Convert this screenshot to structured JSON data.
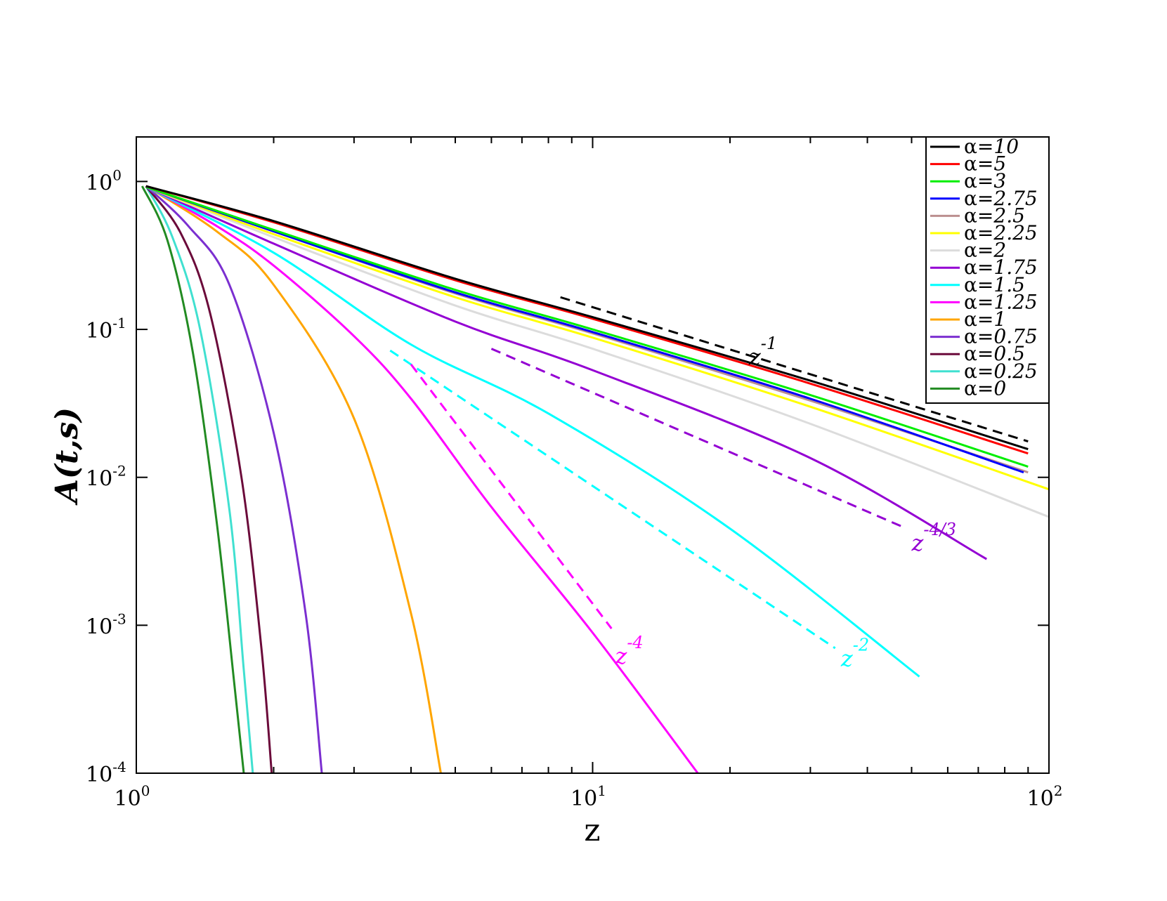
{
  "chart_data": {
    "type": "line",
    "xlabel": "z",
    "ylabel": "A(t,s)",
    "xscale": "log",
    "yscale": "log",
    "xlim": [
      1,
      100
    ],
    "ylim": [
      0.0001,
      2
    ],
    "x_ticks": [
      {
        "value": 1,
        "base": "10",
        "exp": "0"
      },
      {
        "value": 10,
        "base": "10",
        "exp": "1"
      },
      {
        "value": 100,
        "base": "10",
        "exp": "2"
      }
    ],
    "y_ticks": [
      {
        "value": 1,
        "base": "10",
        "exp": "0"
      },
      {
        "value": 0.1,
        "base": "10",
        "exp": "-1"
      },
      {
        "value": 0.01,
        "base": "10",
        "exp": "-2"
      },
      {
        "value": 0.001,
        "base": "10",
        "exp": "-3"
      },
      {
        "value": 0.0001,
        "base": "10",
        "exp": "-4"
      }
    ],
    "legend_position": "top-right",
    "series": [
      {
        "name": "α=10",
        "prefix": "α=",
        "value": "10",
        "color": "#000000",
        "x": [
          1.05,
          2,
          5,
          10,
          30,
          90
        ],
        "y": [
          0.93,
          0.54,
          0.22,
          0.121,
          0.045,
          0.0155
        ]
      },
      {
        "name": "α=5",
        "prefix": "α=",
        "value": "5",
        "color": "#ff0000",
        "x": [
          1.05,
          2,
          5,
          10,
          30,
          90
        ],
        "y": [
          0.93,
          0.53,
          0.215,
          0.118,
          0.043,
          0.0145
        ]
      },
      {
        "name": "α=3",
        "prefix": "α=",
        "value": "3",
        "color": "#00ee00",
        "x": [
          1.05,
          2,
          5,
          10,
          30,
          90
        ],
        "y": [
          0.92,
          0.47,
          0.185,
          0.1,
          0.036,
          0.0118
        ]
      },
      {
        "name": "α=2.75",
        "prefix": "α=",
        "value": "2.75",
        "color": "#0000ff",
        "x": [
          1.05,
          2,
          5,
          10,
          30,
          88
        ],
        "y": [
          0.92,
          0.46,
          0.178,
          0.096,
          0.034,
          0.0108
        ]
      },
      {
        "name": "α=2.5",
        "prefix": "α=",
        "value": "2.5",
        "color": "#bc8f8f",
        "x": [
          1.05,
          2,
          5,
          10,
          30,
          90
        ],
        "y": [
          0.92,
          0.46,
          0.175,
          0.094,
          0.033,
          0.0108
        ]
      },
      {
        "name": "α=2.25",
        "prefix": "α=",
        "value": "2.25",
        "color": "#ffff00",
        "x": [
          1.05,
          2,
          5,
          10,
          30,
          100
        ],
        "y": [
          0.92,
          0.44,
          0.165,
          0.088,
          0.03,
          0.0083
        ]
      },
      {
        "name": "α=2",
        "prefix": "α=",
        "value": "2",
        "color": "#dcdcdc",
        "x": [
          1.05,
          2,
          5,
          10,
          30,
          100
        ],
        "y": [
          0.92,
          0.42,
          0.145,
          0.074,
          0.023,
          0.0054
        ]
      },
      {
        "name": "α=1.75",
        "prefix": "α=",
        "value": "1.75",
        "color": "#9400d3",
        "x": [
          1.05,
          2,
          5,
          10,
          30,
          73
        ],
        "y": [
          0.92,
          0.38,
          0.113,
          0.053,
          0.0135,
          0.0028
        ]
      },
      {
        "name": "α=1.5",
        "prefix": "α=",
        "value": "1.5",
        "color": "#00ffff",
        "x": [
          1.05,
          2,
          4,
          8,
          20,
          52
        ],
        "y": [
          0.92,
          0.33,
          0.079,
          0.027,
          0.0045,
          0.00045
        ]
      },
      {
        "name": "α=1.25",
        "prefix": "α=",
        "value": "1.25",
        "color": "#ff00ff",
        "x": [
          1.05,
          1.5,
          2,
          3,
          4,
          6,
          10,
          17
        ],
        "y": [
          0.93,
          0.5,
          0.27,
          0.09,
          0.034,
          0.0063,
          0.00089,
          0.0001
        ]
      },
      {
        "name": "α=1",
        "prefix": "α=",
        "value": "1",
        "color": "#ffa500",
        "x": [
          1.05,
          1.5,
          2,
          3,
          4,
          4.65
        ],
        "y": [
          0.93,
          0.46,
          0.2,
          0.025,
          0.0012,
          0.0001
        ]
      },
      {
        "name": "α=0.75",
        "prefix": "α=",
        "value": "0.75",
        "color": "#7b2fd0",
        "x": [
          1.05,
          1.3,
          1.6,
          2,
          2.35,
          2.55
        ],
        "y": [
          0.93,
          0.5,
          0.2,
          0.02,
          0.0012,
          0.0001
        ]
      },
      {
        "name": "α=0.5",
        "prefix": "α=",
        "value": "0.5",
        "color": "#6b0a3a",
        "x": [
          1.05,
          1.25,
          1.45,
          1.7,
          1.88,
          1.98
        ],
        "y": [
          0.93,
          0.45,
          0.13,
          0.01,
          0.0007,
          0.0001
        ]
      },
      {
        "name": "α=0.25",
        "prefix": "α=",
        "value": "0.25",
        "color": "#40e0d0",
        "x": [
          1.05,
          1.2,
          1.38,
          1.6,
          1.72,
          1.8
        ],
        "y": [
          0.93,
          0.42,
          0.1,
          0.006,
          0.0005,
          0.0001
        ]
      },
      {
        "name": "α=0",
        "prefix": "α=",
        "value": "0",
        "color": "#228b22",
        "x": [
          1.03,
          1.17,
          1.33,
          1.5,
          1.64,
          1.72
        ],
        "y": [
          0.93,
          0.4,
          0.07,
          0.005,
          0.0004,
          0.0001
        ]
      }
    ],
    "reference_lines": [
      {
        "label_base": "z",
        "label_exp": "-1",
        "color": "#000000",
        "x": [
          8.5,
          90
        ],
        "y": [
          0.165,
          0.0175
        ],
        "label_at": {
          "x": 22,
          "y": 0.058
        }
      },
      {
        "label_base": "z",
        "label_exp": "-4/3",
        "color": "#9400d3",
        "x": [
          6,
          48
        ],
        "y": [
          0.074,
          0.0046
        ],
        "label_at": {
          "x": 50,
          "y": 0.0032
        }
      },
      {
        "label_base": "z",
        "label_exp": "-2",
        "color": "#00ffff",
        "x": [
          3.6,
          34
        ],
        "y": [
          0.072,
          0.0007
        ],
        "label_at": {
          "x": 35,
          "y": 0.00053
        }
      },
      {
        "label_base": "z",
        "label_exp": "-4",
        "color": "#ff00ff",
        "x": [
          4,
          11
        ],
        "y": [
          0.058,
          0.00095
        ],
        "label_at": {
          "x": 11.2,
          "y": 0.00055
        }
      }
    ]
  }
}
